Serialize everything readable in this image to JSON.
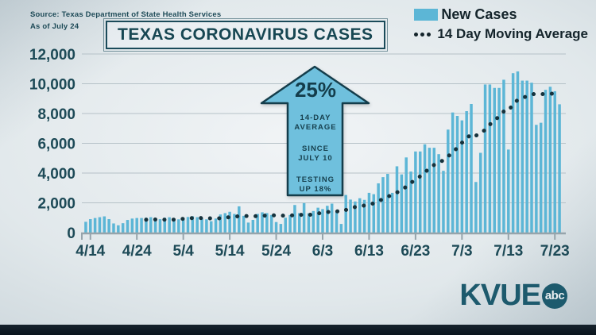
{
  "source": {
    "line1": "Source: Texas Department of State Health Services",
    "line2": "As of July 24"
  },
  "branding": {
    "station": "KVUE",
    "network": "abc"
  },
  "chart_data": {
    "type": "bar+line",
    "title": "TEXAS CORONAVIRUS CASES",
    "xlabel": "",
    "ylabel": "",
    "ylim": [
      0,
      12000
    ],
    "grid": "horizontal",
    "legend_position": "top-right",
    "y_ticks": [
      {
        "value": 0,
        "label": "0"
      },
      {
        "value": 2000,
        "label": "2,000"
      },
      {
        "value": 4000,
        "label": "4,000"
      },
      {
        "value": 6000,
        "label": "6,000"
      },
      {
        "value": 8000,
        "label": "8,000"
      },
      {
        "value": 10000,
        "label": "10,000"
      },
      {
        "value": 12000,
        "label": "12,000"
      }
    ],
    "x_ticks": [
      {
        "index": 1,
        "label": "4/14"
      },
      {
        "index": 11,
        "label": "4/24"
      },
      {
        "index": 21,
        "label": "5/4"
      },
      {
        "index": 31,
        "label": "5/14"
      },
      {
        "index": 41,
        "label": "5/24"
      },
      {
        "index": 51,
        "label": "6/3"
      },
      {
        "index": 61,
        "label": "6/13"
      },
      {
        "index": 71,
        "label": "6/23"
      },
      {
        "index": 81,
        "label": "7/3"
      },
      {
        "index": 91,
        "label": "7/13"
      },
      {
        "index": 101,
        "label": "7/23"
      }
    ],
    "dates": [
      "4/13",
      "4/14",
      "4/15",
      "4/16",
      "4/17",
      "4/18",
      "4/19",
      "4/20",
      "4/21",
      "4/22",
      "4/23",
      "4/24",
      "4/25",
      "4/26",
      "4/27",
      "4/28",
      "4/29",
      "4/30",
      "5/1",
      "5/2",
      "5/3",
      "5/4",
      "5/5",
      "5/6",
      "5/7",
      "5/8",
      "5/9",
      "5/10",
      "5/11",
      "5/12",
      "5/13",
      "5/14",
      "5/15",
      "5/16",
      "5/17",
      "5/18",
      "5/19",
      "5/20",
      "5/21",
      "5/22",
      "5/23",
      "5/24",
      "5/25",
      "5/26",
      "5/27",
      "5/28",
      "5/29",
      "5/30",
      "5/31",
      "6/1",
      "6/2",
      "6/3",
      "6/4",
      "6/5",
      "6/6",
      "6/7",
      "6/8",
      "6/9",
      "6/10",
      "6/11",
      "6/12",
      "6/13",
      "6/14",
      "6/15",
      "6/16",
      "6/17",
      "6/18",
      "6/19",
      "6/20",
      "6/21",
      "6/22",
      "6/23",
      "6/24",
      "6/25",
      "6/26",
      "6/27",
      "6/28",
      "6/29",
      "6/30",
      "7/1",
      "7/2",
      "7/3",
      "7/4",
      "7/5",
      "7/6",
      "7/7",
      "7/8",
      "7/9",
      "7/10",
      "7/11",
      "7/12",
      "7/13",
      "7/14",
      "7/15",
      "7/16",
      "7/17",
      "7/18",
      "7/19",
      "7/20",
      "7/21",
      "7/22",
      "7/23",
      "7/24"
    ],
    "series": [
      {
        "name": "New Cases",
        "type": "bar",
        "color": "#5cb6d6",
        "values": [
          725,
          905,
          980,
          1035,
          1090,
          905,
          615,
          490,
          632,
          850,
          943,
          980,
          980,
          1000,
          1035,
          780,
          900,
          1000,
          1030,
          950,
          890,
          1000,
          1050,
          1100,
          1036,
          945,
          891,
          764,
          945,
          1218,
          1309,
          1400,
          1254,
          1764,
          1127,
          673,
          855,
          1254,
          1364,
          1309,
          1182,
          709,
          582,
          1000,
          1182,
          1855,
          1309,
          1982,
          1300,
          1450,
          1673,
          1582,
          1800,
          1945,
          1491,
          582,
          2527,
          2218,
          2091,
          2309,
          2200,
          2673,
          2582,
          3309,
          3727,
          3945,
          2673,
          4455,
          3909,
          5050,
          4100,
          5450,
          5450,
          5930,
          5700,
          5700,
          5270,
          4150,
          6920,
          8070,
          7840,
          7540,
          8160,
          8640,
          3400,
          5360,
          9950,
          9950,
          9720,
          9720,
          10270,
          5580,
          10710,
          10830,
          10210,
          10210,
          10070,
          7240,
          7380,
          9590,
          9800,
          9500,
          8620
        ]
      },
      {
        "name": "14 Day Moving Average",
        "type": "dotted-line",
        "color": "#16323c",
        "values": [
          null,
          null,
          null,
          null,
          null,
          null,
          null,
          null,
          null,
          null,
          null,
          null,
          null,
          866,
          889,
          880,
          874,
          871,
          867,
          870,
          890,
          926,
          956,
          974,
          981,
          978,
          972,
          956,
          953,
          966,
          1003,
          1039,
          1057,
          1110,
          1122,
          1107,
          1097,
          1111,
          1130,
          1149,
          1166,
          1153,
          1140,
          1144,
          1142,
          1181,
          1174,
          1226,
          1193,
          1216,
          1288,
          1340,
          1378,
          1420,
          1433,
          1390,
          1520,
          1637,
          1715,
          1795,
          1820,
          1917,
          1960,
          2104,
          2266,
          2429,
          2507,
          2696,
          2837,
          3091,
          3342,
          3551,
          3782,
          4056,
          4298,
          4548,
          4734,
          4846,
          5104,
          5414,
          5692,
          6040,
          6304,
          6642,
          6524,
          6614,
          6936,
          7257,
          7528,
          7815,
          8141,
          8164,
          8632,
          8911,
          9064,
          9150,
          9280,
          9340,
          9300,
          9320,
          9350,
          9300,
          9200
        ]
      }
    ],
    "annotation": {
      "headline": "25%",
      "lines": [
        "14-DAY",
        "AVERAGE",
        "SINCE",
        "JULY 10",
        "TESTING",
        "UP 18%"
      ]
    }
  }
}
